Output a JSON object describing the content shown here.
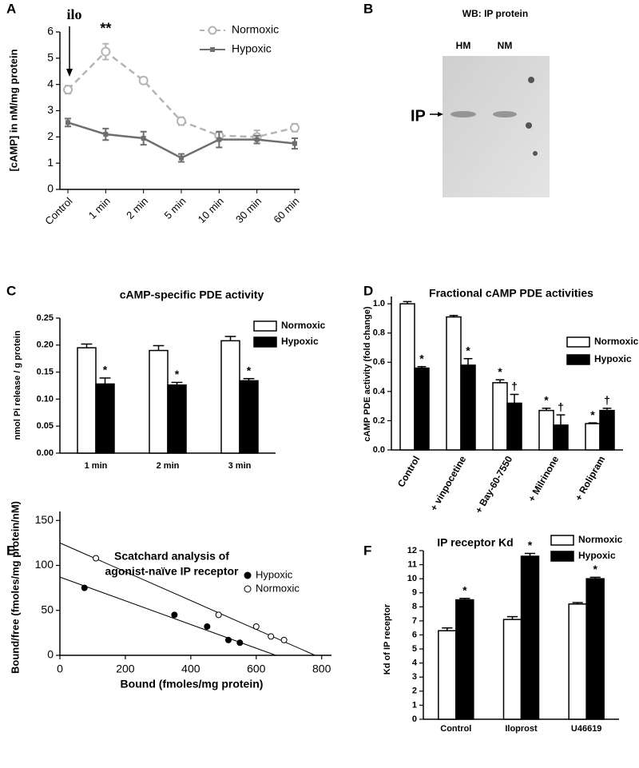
{
  "chart_data": [
    {
      "panel": "A",
      "type": "line",
      "y_label": "[cAMP] in nM/mg protein",
      "categories": [
        "Control",
        "1 min",
        "2 min",
        "5 min",
        "10 min",
        "30 min",
        "60 min"
      ],
      "series": [
        {
          "name": "Normoxic",
          "color": "#b4b4b4",
          "marker": "open-circle",
          "dashed": true,
          "values": [
            3.8,
            5.25,
            4.15,
            2.6,
            2.05,
            2.0,
            2.35
          ],
          "errors": [
            0.15,
            0.3,
            0.12,
            0.15,
            0.15,
            0.25,
            0.15
          ]
        },
        {
          "name": "Hypoxic",
          "color": "#6e6e6e",
          "marker": "square",
          "dashed": false,
          "values": [
            2.55,
            2.1,
            1.95,
            1.2,
            1.9,
            1.9,
            1.75
          ],
          "errors": [
            0.15,
            0.22,
            0.25,
            0.15,
            0.3,
            0.15,
            0.2
          ]
        }
      ],
      "annotations": [
        "ilo",
        "**"
      ],
      "ylim": [
        0,
        6
      ],
      "yticks": [
        0,
        1,
        2,
        3,
        4,
        5,
        6
      ],
      "legend": "upper right"
    },
    {
      "panel": "C",
      "type": "bar",
      "title": "cAMP-specific PDE activity",
      "y_label": "nmol Pi release / g protein",
      "categories": [
        "1 min",
        "2 min",
        "3 min"
      ],
      "series": [
        {
          "name": "Normoxic",
          "color": "#ffffff",
          "values": [
            0.195,
            0.19,
            0.208
          ],
          "errors": [
            0.007,
            0.009,
            0.008
          ],
          "significance": [
            null,
            null,
            null
          ]
        },
        {
          "name": "Hypoxic",
          "color": "#000000",
          "values": [
            0.128,
            0.126,
            0.134
          ],
          "errors": [
            0.011,
            0.005,
            0.004
          ],
          "significance": [
            "*",
            "*",
            "*"
          ]
        }
      ],
      "ylim": [
        0,
        0.25
      ],
      "yticks": [
        {
          "value": 0,
          "label": "0.00"
        },
        {
          "value": 0.05,
          "label": "0.05"
        },
        {
          "value": 0.1,
          "label": "0.10"
        },
        {
          "value": 0.15,
          "label": "0.15"
        },
        {
          "value": 0.2,
          "label": "0.20"
        },
        {
          "value": 0.25,
          "label": "0.25"
        }
      ],
      "legend": "upper right"
    },
    {
      "panel": "D",
      "type": "bar",
      "title": "Fractional cAMP PDE activities",
      "y_label": "cAMP PDE activity (fold change)",
      "categories": [
        "Control",
        "+ vinpocetine",
        "+ Bay-60-7550",
        "+ Milrinone",
        "+ Rolipram"
      ],
      "series": [
        {
          "name": "Normoxic",
          "color": "#ffffff",
          "values": [
            1.0,
            0.91,
            0.46,
            0.27,
            0.18
          ],
          "errors": [
            0.015,
            0.01,
            0.02,
            0.015,
            0.005
          ],
          "significance": [
            null,
            null,
            "*",
            "*",
            "*"
          ]
        },
        {
          "name": "Hypoxic",
          "color": "#000000",
          "values": [
            0.56,
            0.58,
            0.32,
            0.17,
            0.27
          ],
          "errors": [
            0.01,
            0.045,
            0.06,
            0.07,
            0.015
          ],
          "significance": [
            "*",
            "*",
            "†",
            "†",
            "†"
          ]
        }
      ],
      "ylim": [
        0,
        1.05
      ],
      "yticks": [
        {
          "value": 0,
          "label": "0.0"
        },
        0.2,
        0.4,
        0.6,
        0.8,
        {
          "value": 1,
          "label": "1.0"
        }
      ],
      "legend": "upper right"
    },
    {
      "panel": "E",
      "type": "scatter",
      "title": [
        "Scatchard analysis of",
        "agonist-naïve IP receptor"
      ],
      "x_label": "Bound (fmoles/mg protein)",
      "y_label": "Bound/free (fmoles/mg protein/nM)",
      "series": [
        {
          "name": "Hypoxic",
          "color": "#000000",
          "filled": true,
          "x": [
            75,
            350,
            450,
            515,
            550
          ],
          "y": [
            75,
            45,
            32,
            17,
            14
          ],
          "fit": {
            "x": [
              0,
              660
            ],
            "y": [
              87,
              0
            ]
          }
        },
        {
          "name": "Normoxic",
          "color": "#000000",
          "filled": false,
          "x": [
            110,
            485,
            600,
            645,
            685
          ],
          "y": [
            108,
            45,
            32,
            21,
            17
          ],
          "fit": {
            "x": [
              0,
              780
            ],
            "y": [
              125,
              0
            ]
          }
        }
      ],
      "xlim": [
        0,
        830
      ],
      "xticks": [
        0,
        200,
        400,
        600,
        800
      ],
      "ylim": [
        0,
        160
      ],
      "yticks": [
        0,
        50,
        100,
        150
      ],
      "legend": "upper right"
    },
    {
      "panel": "F",
      "type": "bar",
      "title": "IP receptor Kd",
      "y_label": "Kd of IP receptor",
      "categories": [
        "Control",
        "Iloprost",
        "U46619"
      ],
      "series": [
        {
          "name": "Normoxic",
          "color": "#ffffff",
          "values": [
            6.3,
            7.1,
            8.2
          ],
          "errors": [
            0.2,
            0.2,
            0.1
          ],
          "significance": [
            null,
            null,
            null
          ]
        },
        {
          "name": "Hypoxic",
          "color": "#000000",
          "values": [
            8.5,
            11.6,
            10.0
          ],
          "errors": [
            0.1,
            0.2,
            0.1
          ],
          "significance": [
            "*",
            "*",
            "*"
          ]
        }
      ],
      "ylim": [
        0,
        12
      ],
      "yticks": [
        0,
        1,
        2,
        3,
        4,
        5,
        6,
        7,
        8,
        9,
        10,
        11,
        12
      ],
      "legend": "upper right"
    }
  ],
  "blot": {
    "panel": "B",
    "title": "WB:  IP protein",
    "lanes": [
      "HM",
      "NM"
    ],
    "band_label": "IP"
  }
}
